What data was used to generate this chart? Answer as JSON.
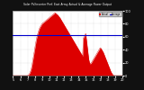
{
  "title": "Solar PV/Inverter Perf. East Array Actual & Average Power Output",
  "bg_color": "#111111",
  "plot_bg_color": "#ffffff",
  "bar_color": "#dd0000",
  "avg_line_color": "#0000cc",
  "avg_value": 0.62,
  "x_labels": [
    "5",
    "6",
    "7",
    "8",
    "9",
    "10",
    "11",
    "12",
    "13",
    "14",
    "15",
    "16",
    "17",
    "18",
    "19",
    "20"
  ],
  "y_max": 1.0,
  "y_min": 0.0,
  "grid_color": "#aaaaaa",
  "title_color": "#ffffff",
  "legend_actual": "Actual",
  "legend_avg": "Average",
  "power_data": [
    0.0,
    0.0,
    0.0,
    0.0,
    0.0,
    0.0,
    0.0,
    0.0,
    0.0,
    0.0,
    0.0,
    0.0,
    0.0,
    0.0,
    0.0,
    0.0,
    0.0,
    0.0,
    0.0,
    0.0,
    0.01,
    0.02,
    0.04,
    0.07,
    0.11,
    0.17,
    0.24,
    0.31,
    0.38,
    0.45,
    0.52,
    0.58,
    0.63,
    0.67,
    0.71,
    0.74,
    0.76,
    0.78,
    0.8,
    0.81,
    0.82,
    0.83,
    0.84,
    0.85,
    0.86,
    0.87,
    0.88,
    0.89,
    0.9,
    0.91,
    0.92,
    0.93,
    0.94,
    0.95,
    0.96,
    0.97,
    0.96,
    0.95,
    0.94,
    0.93,
    0.91,
    0.9,
    0.88,
    0.86,
    0.84,
    0.82,
    0.8,
    0.78,
    0.76,
    0.74,
    0.72,
    0.7,
    0.68,
    0.66,
    0.64,
    0.62,
    0.6,
    0.58,
    0.56,
    0.54,
    0.52,
    0.5,
    0.48,
    0.46,
    0.44,
    0.42,
    0.4,
    0.38,
    0.36,
    0.34,
    0.32,
    0.3,
    0.58,
    0.6,
    0.62,
    0.65,
    0.55,
    0.45,
    0.35,
    0.25,
    0.2,
    0.18,
    0.19,
    0.21,
    0.23,
    0.25,
    0.27,
    0.29,
    0.31,
    0.33,
    0.35,
    0.37,
    0.39,
    0.41,
    0.43,
    0.42,
    0.4,
    0.38,
    0.36,
    0.33,
    0.3,
    0.27,
    0.24,
    0.21,
    0.18,
    0.15,
    0.12,
    0.09,
    0.06,
    0.04,
    0.02,
    0.01,
    0.0,
    0.0,
    0.0,
    0.0,
    0.0,
    0.0,
    0.0,
    0.0,
    0.0,
    0.0,
    0.0,
    0.0
  ]
}
